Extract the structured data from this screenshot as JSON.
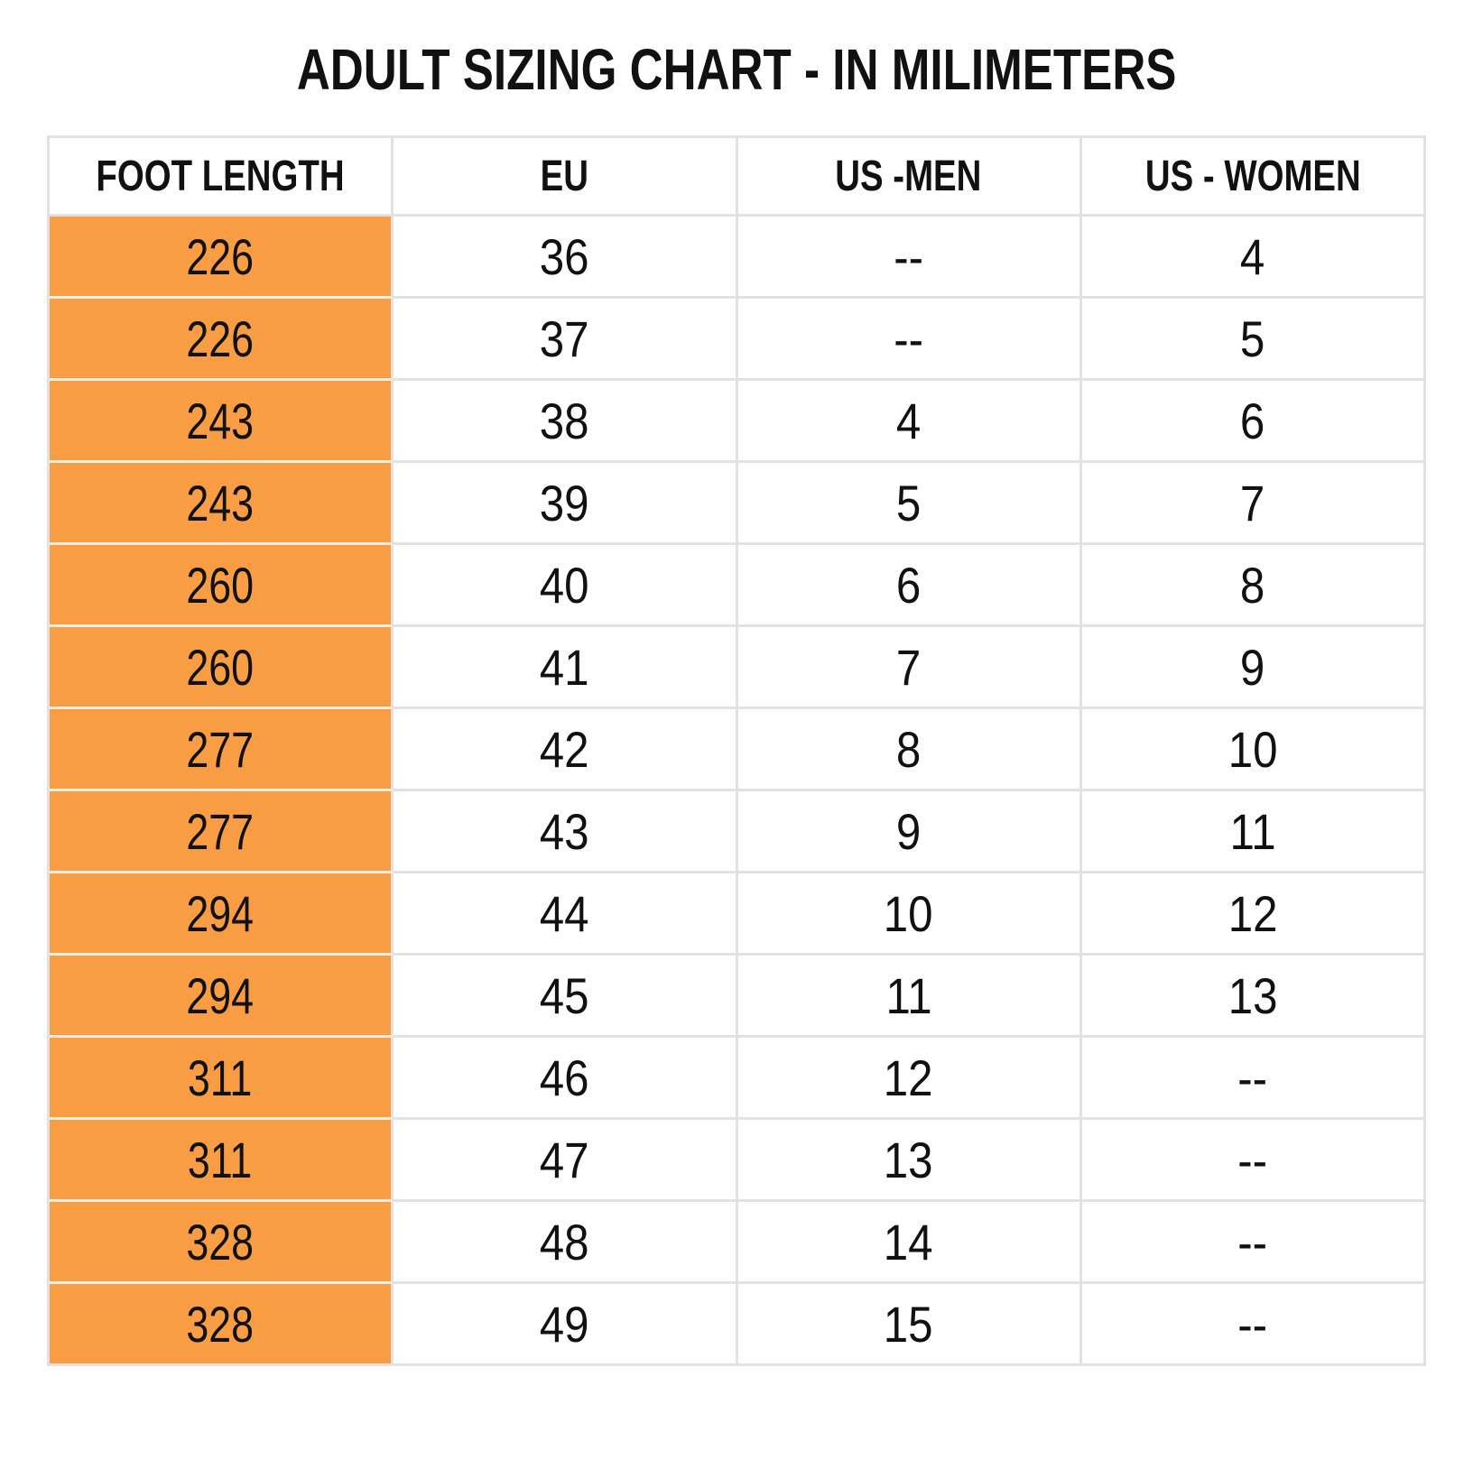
{
  "title": "ADULT SIZING CHART - IN MILIMETERS",
  "colors": {
    "accent_orange": "#F99D45",
    "grid_line": "#E2E2E2",
    "ink": "#111111"
  },
  "table": {
    "columns": {
      "foot_length": "FOOT LENGTH",
      "eu": "EU",
      "us_men": "US -MEN",
      "us_women": "US - WOMEN"
    },
    "rows": [
      {
        "foot_length": "226",
        "eu": "36",
        "us_men": "--",
        "us_women": "4"
      },
      {
        "foot_length": "226",
        "eu": "37",
        "us_men": "--",
        "us_women": "5"
      },
      {
        "foot_length": "243",
        "eu": "38",
        "us_men": "4",
        "us_women": "6"
      },
      {
        "foot_length": "243",
        "eu": "39",
        "us_men": "5",
        "us_women": "7"
      },
      {
        "foot_length": "260",
        "eu": "40",
        "us_men": "6",
        "us_women": "8"
      },
      {
        "foot_length": "260",
        "eu": "41",
        "us_men": "7",
        "us_women": "9"
      },
      {
        "foot_length": "277",
        "eu": "42",
        "us_men": "8",
        "us_women": "10"
      },
      {
        "foot_length": "277",
        "eu": "43",
        "us_men": "9",
        "us_women": "11"
      },
      {
        "foot_length": "294",
        "eu": "44",
        "us_men": "10",
        "us_women": "12"
      },
      {
        "foot_length": "294",
        "eu": "45",
        "us_men": "11",
        "us_women": "13"
      },
      {
        "foot_length": "311",
        "eu": "46",
        "us_men": "12",
        "us_women": "--"
      },
      {
        "foot_length": "311",
        "eu": "47",
        "us_men": "13",
        "us_women": "--"
      },
      {
        "foot_length": "328",
        "eu": "48",
        "us_men": "14",
        "us_women": "--"
      },
      {
        "foot_length": "328",
        "eu": "49",
        "us_men": "15",
        "us_women": "--"
      }
    ]
  },
  "chart_data": {
    "type": "table",
    "title": "ADULT SIZING CHART - IN MILIMETERS",
    "columns": [
      "FOOT LENGTH",
      "EU",
      "US -MEN",
      "US - WOMEN"
    ],
    "rows": [
      [
        "226",
        "36",
        "--",
        "4"
      ],
      [
        "226",
        "37",
        "--",
        "5"
      ],
      [
        "243",
        "38",
        "4",
        "6"
      ],
      [
        "243",
        "39",
        "5",
        "7"
      ],
      [
        "260",
        "40",
        "6",
        "8"
      ],
      [
        "260",
        "41",
        "7",
        "9"
      ],
      [
        "277",
        "42",
        "8",
        "10"
      ],
      [
        "277",
        "43",
        "9",
        "11"
      ],
      [
        "294",
        "44",
        "10",
        "12"
      ],
      [
        "294",
        "45",
        "11",
        "13"
      ],
      [
        "311",
        "46",
        "12",
        "--"
      ],
      [
        "311",
        "47",
        "13",
        "--"
      ],
      [
        "328",
        "48",
        "14",
        "--"
      ],
      [
        "328",
        "49",
        "15",
        "--"
      ]
    ],
    "layout": {
      "header_highlight_column": "FOOT LENGTH",
      "highlight_color": "#F99D45",
      "grid": true,
      "missing_value_marker": "--"
    }
  }
}
